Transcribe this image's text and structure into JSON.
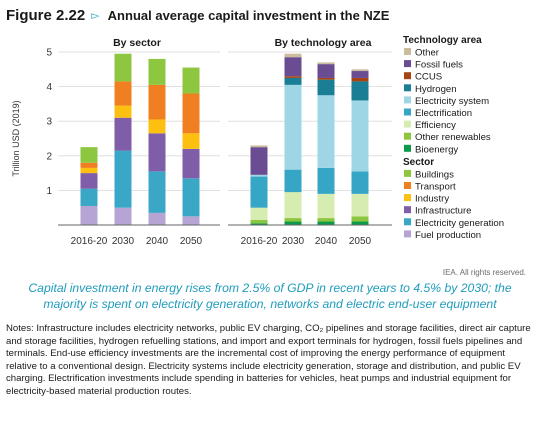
{
  "header": {
    "figure_number": "Figure 2.22",
    "title": "Annual average capital investment in the NZE"
  },
  "chart_data": {
    "type": "bar",
    "stacked": true,
    "y_axis": {
      "label": "Trillion USD (2019)",
      "ylim": [
        0,
        5
      ],
      "ticks": [
        1,
        2,
        3,
        4,
        5
      ]
    },
    "panels": [
      {
        "title": "By sector",
        "categories": [
          "2016-20",
          "2030",
          "2040",
          "2050"
        ],
        "series": [
          {
            "name": "Fuel production",
            "color": "#b6a5d4",
            "values": [
              0.55,
              0.5,
              0.35,
              0.25
            ]
          },
          {
            "name": "Electricity generation",
            "color": "#3ba7c7",
            "values": [
              0.5,
              1.65,
              1.2,
              1.1
            ]
          },
          {
            "name": "Infrastructure",
            "color": "#7f5da8",
            "values": [
              0.45,
              0.95,
              1.1,
              0.85
            ]
          },
          {
            "name": "Industry",
            "color": "#fdc010",
            "values": [
              0.15,
              0.35,
              0.4,
              0.45
            ]
          },
          {
            "name": "Transport",
            "color": "#f07f22",
            "values": [
              0.15,
              0.7,
              1.0,
              1.15
            ]
          },
          {
            "name": "Buildings",
            "color": "#8dc63f",
            "values": [
              0.45,
              0.8,
              0.75,
              0.75
            ]
          }
        ]
      },
      {
        "title": "By technology area",
        "categories": [
          "2016-20",
          "2030",
          "2040",
          "2050"
        ],
        "series": [
          {
            "name": "Bioenergy",
            "color": "#0b9a49",
            "values": [
              0.05,
              0.1,
              0.1,
              0.1
            ]
          },
          {
            "name": "Other renewables",
            "color": "#8cc63e",
            "values": [
              0.1,
              0.1,
              0.1,
              0.15
            ]
          },
          {
            "name": "Efficiency",
            "color": "#d7ecb1",
            "values": [
              0.35,
              0.75,
              0.7,
              0.65
            ]
          },
          {
            "name": "Electrification",
            "color": "#35a6c6",
            "values": [
              0.9,
              0.65,
              0.75,
              0.65
            ]
          },
          {
            "name": "Electricity system",
            "color": "#9ed6e6",
            "values": [
              0.05,
              2.45,
              2.1,
              2.05
            ]
          },
          {
            "name": "Hydrogen",
            "color": "#1a7e95",
            "values": [
              0.0,
              0.2,
              0.45,
              0.55
            ]
          },
          {
            "name": "CCUS",
            "color": "#a64513",
            "values": [
              0.0,
              0.05,
              0.05,
              0.1
            ]
          },
          {
            "name": "Fossil fuels",
            "color": "#6a4c93",
            "values": [
              0.8,
              0.55,
              0.4,
              0.2
            ]
          },
          {
            "name": "Other",
            "color": "#cbbd9c",
            "values": [
              0.05,
              0.1,
              0.05,
              0.05
            ]
          }
        ]
      }
    ],
    "legend": {
      "placement": "right",
      "groups": [
        {
          "title": "Technology area",
          "items": [
            {
              "label": "Other",
              "color": "#cbbd9c"
            },
            {
              "label": "Fossil fuels",
              "color": "#6a4c93"
            },
            {
              "label": "CCUS",
              "color": "#a64513"
            },
            {
              "label": "Hydrogen",
              "color": "#1a7e95"
            },
            {
              "label": "Electricity system",
              "color": "#9ed6e6"
            },
            {
              "label": "Electrification",
              "color": "#35a6c6"
            },
            {
              "label": "Efficiency",
              "color": "#d7ecb1"
            },
            {
              "label": "Other renewables",
              "color": "#8cc63e"
            },
            {
              "label": "Bioenergy",
              "color": "#0b9a49"
            }
          ]
        },
        {
          "title": "Sector",
          "items": [
            {
              "label": "Buildings",
              "color": "#8dc63f"
            },
            {
              "label": "Transport",
              "color": "#f07f22"
            },
            {
              "label": "Industry",
              "color": "#fdc010"
            },
            {
              "label": "Infrastructure",
              "color": "#7f5da8"
            },
            {
              "label": "Electricity generation",
              "color": "#3ba7c7"
            },
            {
              "label": "Fuel production",
              "color": "#b6a5d4"
            }
          ]
        }
      ]
    }
  },
  "credit": "IEA. All rights reserved.",
  "caption": "Capital investment in energy rises from 2.5% of GDP in recent years to 4.5% by 2030; the majority is spent on electricity generation, networks and electric end-user equipment",
  "notes": "Notes: Infrastructure includes electricity networks, public EV charging, CO₂ pipelines and storage facilities, direct air capture and storage facilities, hydrogen refuelling stations, and import and export terminals for hydrogen, fossil fuels pipelines and terminals. End-use efficiency investments are the incremental cost of improving the energy performance of equipment relative to a conventional design. Electricity systems include electricity generation, storage and distribution, and public EV charging. Electrification investments include spending in batteries for vehicles, heat pumps and industrial equipment for electricity-based material production routes."
}
